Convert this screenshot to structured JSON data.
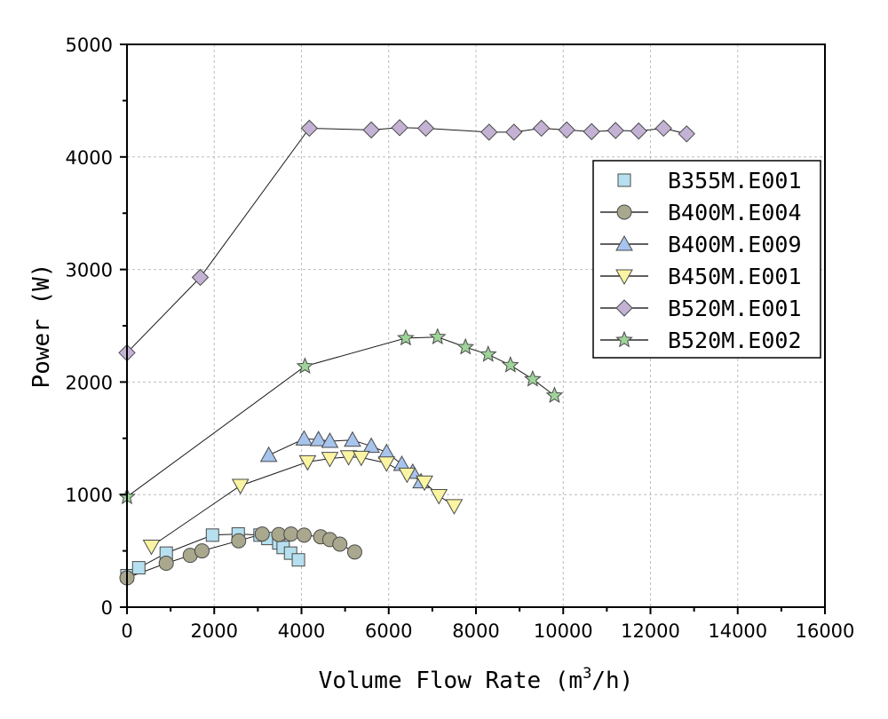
{
  "chart_data": {
    "type": "line",
    "title": "",
    "xlabel": "Volume Flow Rate",
    "xlabel_unit_prefix": "(m",
    "xlabel_unit_sup": "3",
    "xlabel_unit_suffix": "/h)",
    "ylabel": "Power (W)",
    "xlim": [
      0,
      16000
    ],
    "ylim": [
      0,
      5000
    ],
    "xticks": [
      0,
      2000,
      4000,
      6000,
      8000,
      10000,
      12000,
      14000,
      16000
    ],
    "yticks": [
      0,
      1000,
      2000,
      3000,
      4000,
      5000
    ],
    "grid": true,
    "legend_position": "top-right",
    "series": [
      {
        "name": "B355M.E001",
        "marker": "square",
        "color": "#b6e0ef",
        "points": [
          [
            0,
            280
          ],
          [
            270,
            350
          ],
          [
            900,
            480
          ],
          [
            1960,
            640
          ],
          [
            2550,
            650
          ],
          [
            3050,
            640
          ],
          [
            3230,
            610
          ],
          [
            3480,
            570
          ],
          [
            3580,
            530
          ],
          [
            3750,
            480
          ],
          [
            3930,
            420
          ]
        ]
      },
      {
        "name": "B400M.E004",
        "marker": "circle",
        "color": "#a9a78d",
        "points": [
          [
            0,
            260
          ],
          [
            900,
            390
          ],
          [
            1450,
            460
          ],
          [
            1720,
            500
          ],
          [
            2560,
            590
          ],
          [
            3100,
            650
          ],
          [
            3480,
            645
          ],
          [
            3760,
            650
          ],
          [
            4060,
            640
          ],
          [
            4440,
            625
          ],
          [
            4650,
            600
          ],
          [
            4880,
            560
          ],
          [
            5220,
            490
          ]
        ]
      },
      {
        "name": "B400M.E009",
        "marker": "triangle-up",
        "color": "#a7c4ed",
        "points": [
          [
            3250,
            1350
          ],
          [
            4060,
            1495
          ],
          [
            4390,
            1490
          ],
          [
            4650,
            1475
          ],
          [
            5170,
            1485
          ],
          [
            5600,
            1430
          ],
          [
            5950,
            1375
          ],
          [
            6300,
            1270
          ],
          [
            6550,
            1200
          ],
          [
            6740,
            1115
          ]
        ]
      },
      {
        "name": "B450M.E001",
        "marker": "triangle-down",
        "color": "#fbf5a3",
        "points": [
          [
            560,
            540
          ],
          [
            2600,
            1080
          ],
          [
            4140,
            1290
          ],
          [
            4650,
            1320
          ],
          [
            5080,
            1335
          ],
          [
            5370,
            1330
          ],
          [
            5950,
            1280
          ],
          [
            6420,
            1180
          ],
          [
            6820,
            1110
          ],
          [
            7150,
            990
          ],
          [
            7500,
            900
          ]
        ]
      },
      {
        "name": "B520M.E001",
        "marker": "diamond",
        "color": "#c4b2d5",
        "points": [
          [
            0,
            2260
          ],
          [
            1680,
            2930
          ],
          [
            4180,
            4255
          ],
          [
            5600,
            4240
          ],
          [
            6250,
            4260
          ],
          [
            6850,
            4255
          ],
          [
            8300,
            4220
          ],
          [
            8870,
            4220
          ],
          [
            9500,
            4255
          ],
          [
            10080,
            4240
          ],
          [
            10650,
            4225
          ],
          [
            11200,
            4235
          ],
          [
            11730,
            4230
          ],
          [
            12300,
            4255
          ],
          [
            12830,
            4205
          ]
        ]
      },
      {
        "name": "B520M.E002",
        "marker": "star",
        "color": "#9ed39a",
        "points": [
          [
            0,
            980
          ],
          [
            4080,
            2140
          ],
          [
            6390,
            2390
          ],
          [
            7120,
            2400
          ],
          [
            7760,
            2310
          ],
          [
            8280,
            2245
          ],
          [
            8790,
            2150
          ],
          [
            9300,
            2025
          ],
          [
            9800,
            1880
          ]
        ]
      }
    ]
  }
}
